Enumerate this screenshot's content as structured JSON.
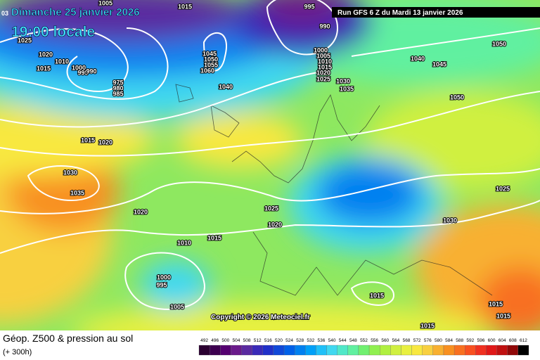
{
  "header": {
    "edge_text": "03",
    "date": "Dimanche 25 janvier 2026",
    "time": "19:00 locale",
    "run": "Run GFS 6 Z du Mardi 13 janvier 2026",
    "copyright": "Copyright © 2026 Meteociel.fr"
  },
  "isobar_labels": [
    "1005",
    "1015",
    "995",
    "990",
    "1025",
    "1020",
    "1015",
    "1010",
    "1000",
    "995",
    "990",
    "975",
    "980",
    "985",
    "1045",
    "1050",
    "1055",
    "1060",
    "1040",
    "1000",
    "1005",
    "1010",
    "1015",
    "1020",
    "1025",
    "1030",
    "1035",
    "1040",
    "1045",
    "1050",
    "1050",
    "1015",
    "1020",
    "1030",
    "1035",
    "1020",
    "1025",
    "1020",
    "1010",
    "1015",
    "1000",
    "995",
    "1005",
    "1025",
    "1030",
    "1015",
    "1015",
    "1015",
    "1015"
  ],
  "footer": {
    "title": "Géop. Z500 & pression au sol",
    "lead": "(+ 300h)"
  },
  "legend": {
    "levels": [
      492,
      496,
      500,
      504,
      508,
      512,
      516,
      520,
      524,
      528,
      532,
      536,
      540,
      544,
      548,
      552,
      556,
      560,
      564,
      568,
      572,
      576,
      580,
      584,
      588,
      592,
      596,
      600,
      604,
      608,
      612
    ],
    "colors": [
      "#2a0030",
      "#3d0050",
      "#550070",
      "#6a1a8a",
      "#5a2aa0",
      "#3a2ab8",
      "#2030c8",
      "#1048d8",
      "#0060e8",
      "#0080f0",
      "#00a0f8",
      "#20c0f8",
      "#40d8f0",
      "#50e8c8",
      "#60f0a0",
      "#70f070",
      "#90f050",
      "#b0f040",
      "#d0f040",
      "#e8f040",
      "#f8e840",
      "#f8d040",
      "#f8b030",
      "#f89020",
      "#f87020",
      "#f85020",
      "#f03020",
      "#e01818",
      "#c01010",
      "#900808",
      "#000000"
    ]
  }
}
